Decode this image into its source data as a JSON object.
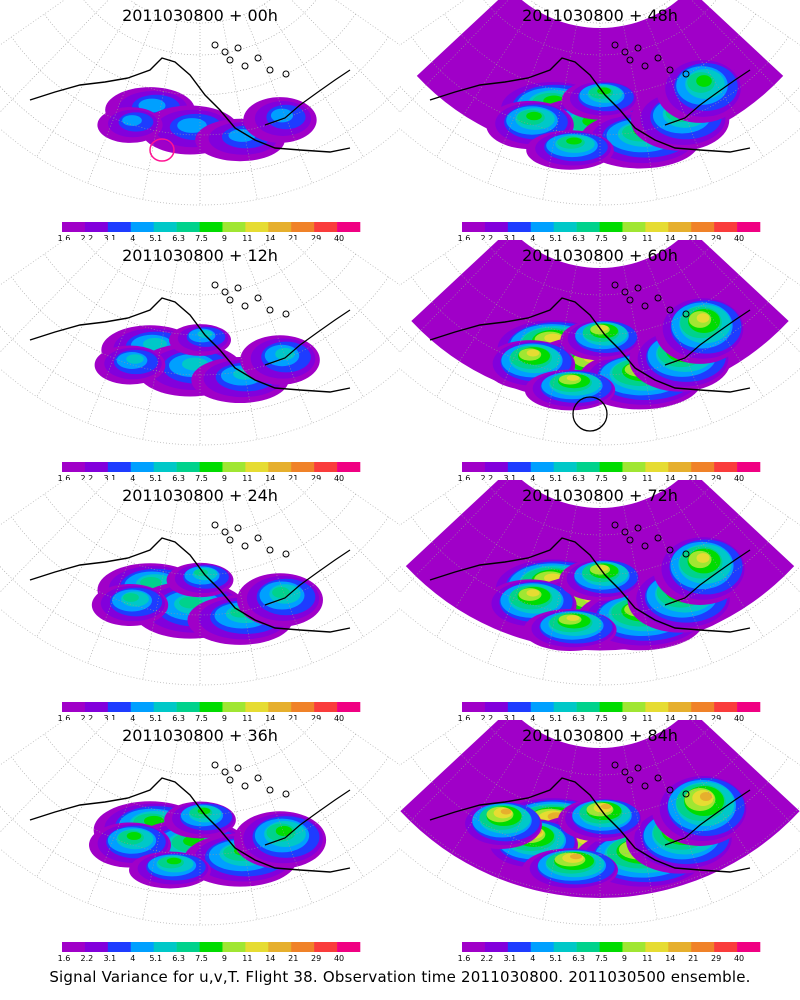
{
  "chart_data": {
    "type": "heatmap",
    "caption": "Signal Variance for u,v,T. Flight 38. Observation time 2011030800. 2011030500 ensemble.",
    "colorbar": {
      "ticks": [
        "1.6",
        "2.2",
        "3.1",
        "4",
        "5.1",
        "6.3",
        "7.5",
        "9",
        "11",
        "14",
        "21",
        "29",
        "40"
      ],
      "colors": [
        "#a000c8",
        "#8200dc",
        "#1e3cff",
        "#00a0ff",
        "#00c8c8",
        "#00d28c",
        "#00dc00",
        "#a0e632",
        "#e6dc32",
        "#e6af2d",
        "#f08228",
        "#fa3c3c",
        "#f00082"
      ]
    },
    "panels": [
      {
        "title": "2011030800 + 00h",
        "max_level": 3,
        "extent": 0.45,
        "marker": "magenta-circle"
      },
      {
        "title": "2011030800 + 48h",
        "max_level": 6,
        "extent": 0.85,
        "marker": ""
      },
      {
        "title": "2011030800 + 12h",
        "max_level": 4,
        "extent": 0.55,
        "marker": ""
      },
      {
        "title": "2011030800 + 60h",
        "max_level": 8,
        "extent": 0.9,
        "marker": "black-circle"
      },
      {
        "title": "2011030800 + 24h",
        "max_level": 5,
        "extent": 0.65,
        "marker": ""
      },
      {
        "title": "2011030800 + 72h",
        "max_level": 8,
        "extent": 0.95,
        "marker": ""
      },
      {
        "title": "2011030800 + 36h",
        "max_level": 6,
        "extent": 0.75,
        "marker": ""
      },
      {
        "title": "2011030800 + 84h",
        "max_level": 9,
        "extent": 1.0,
        "marker": ""
      }
    ]
  }
}
